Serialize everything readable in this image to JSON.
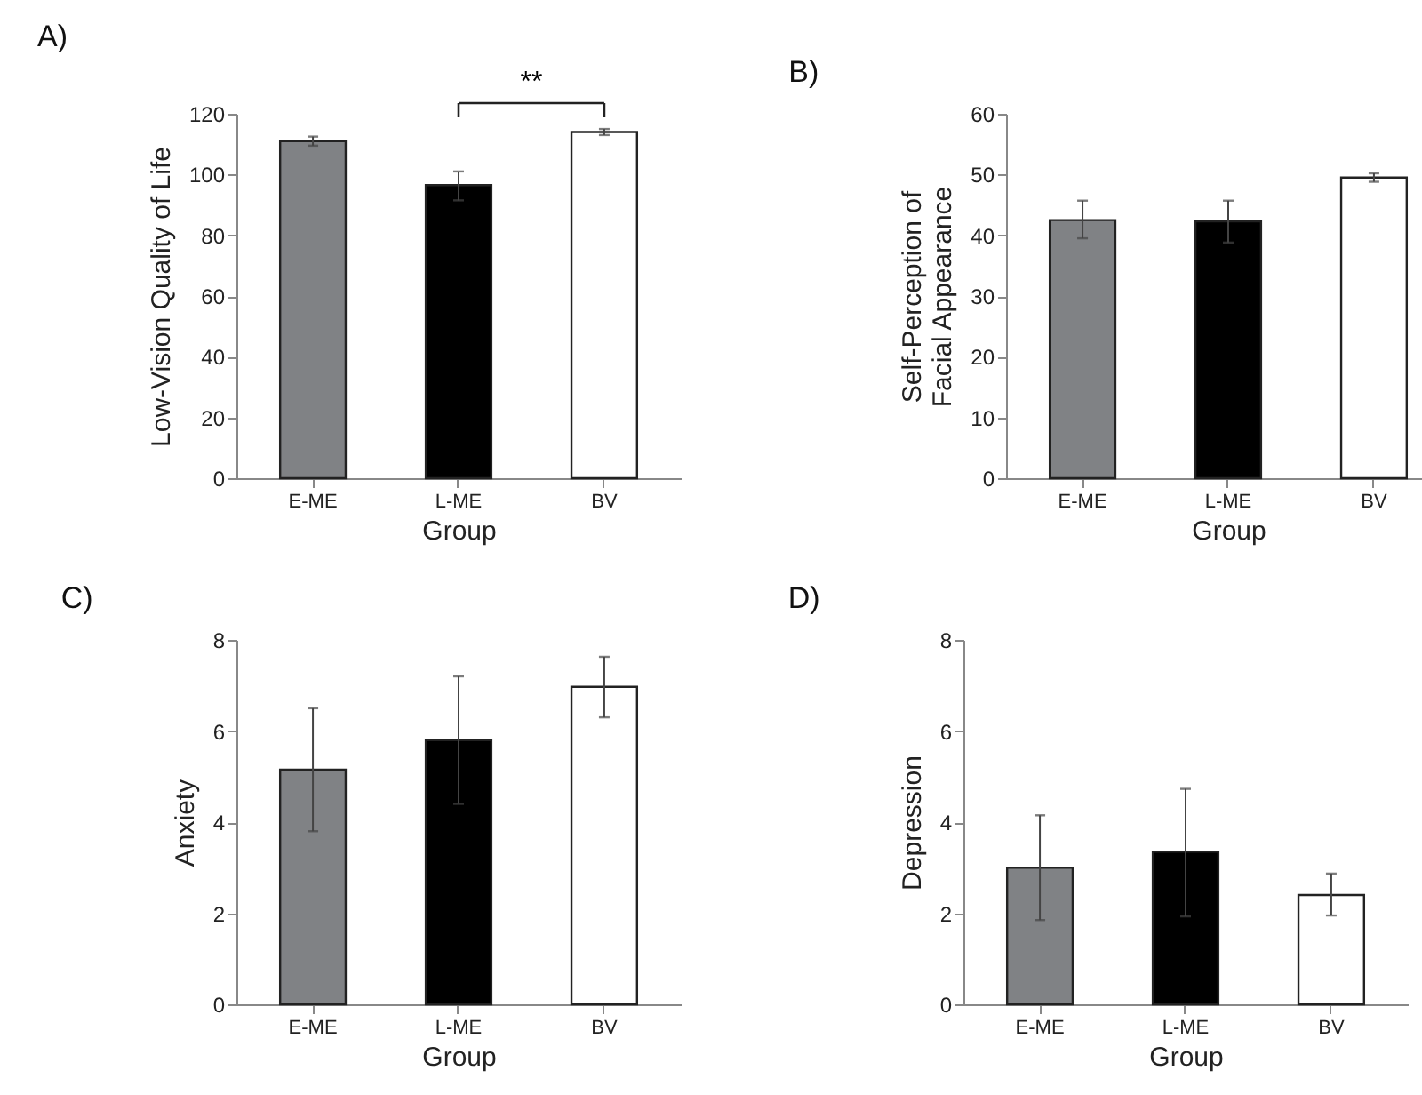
{
  "chart_data": [
    {
      "type": "bar",
      "title": "A)",
      "xlabel": "Group",
      "ylabel": "Low-Vision Quality of Life",
      "categories": [
        "E-ME",
        "L-ME",
        "BV"
      ],
      "values": [
        111,
        96.5,
        114
      ],
      "colors": [
        "#808285",
        "#000000",
        "#ffffff"
      ],
      "errors": [
        [
          109.5,
          112.5
        ],
        [
          91.5,
          101
        ],
        [
          113,
          115
        ]
      ],
      "ylim": [
        0,
        120
      ],
      "yticks": [
        0,
        20,
        40,
        60,
        80,
        100,
        120
      ],
      "annotations": [
        "**"
      ]
    },
    {
      "type": "bar",
      "title": "B)",
      "xlabel": "Group",
      "ylabel": "Self-Perception of\nFacial Appearance",
      "categories": [
        "E-ME",
        "L-ME",
        "BV"
      ],
      "values": [
        42.5,
        42.3,
        49.5
      ],
      "colors": [
        "#808285",
        "#000000",
        "#ffffff"
      ],
      "errors": [
        [
          39.5,
          45.7
        ],
        [
          38.8,
          45.7
        ],
        [
          48.8,
          50.2
        ]
      ],
      "ylim": [
        0,
        60
      ],
      "yticks": [
        0,
        10,
        20,
        30,
        40,
        50,
        60
      ]
    },
    {
      "type": "bar",
      "title": "C)",
      "xlabel": "Group",
      "ylabel": "Anxiety",
      "categories": [
        "E-ME",
        "L-ME",
        "BV"
      ],
      "values": [
        5.15,
        5.8,
        6.97
      ],
      "colors": [
        "#808285",
        "#000000",
        "#ffffff"
      ],
      "errors": [
        [
          3.8,
          6.5
        ],
        [
          4.4,
          7.2
        ],
        [
          6.3,
          7.63
        ]
      ],
      "ylim": [
        0,
        8
      ],
      "yticks": [
        0,
        2,
        4,
        6,
        8
      ]
    },
    {
      "type": "bar",
      "title": "D)",
      "xlabel": "Group",
      "ylabel": "Depression",
      "categories": [
        "E-ME",
        "L-ME",
        "BV"
      ],
      "values": [
        3.0,
        3.35,
        2.4
      ],
      "colors": [
        "#808285",
        "#000000",
        "#ffffff"
      ],
      "errors": [
        [
          1.85,
          4.15
        ],
        [
          1.93,
          4.73
        ],
        [
          1.95,
          2.87
        ]
      ],
      "ylim": [
        0,
        8
      ],
      "yticks": [
        0,
        2,
        4,
        6,
        8
      ]
    }
  ]
}
